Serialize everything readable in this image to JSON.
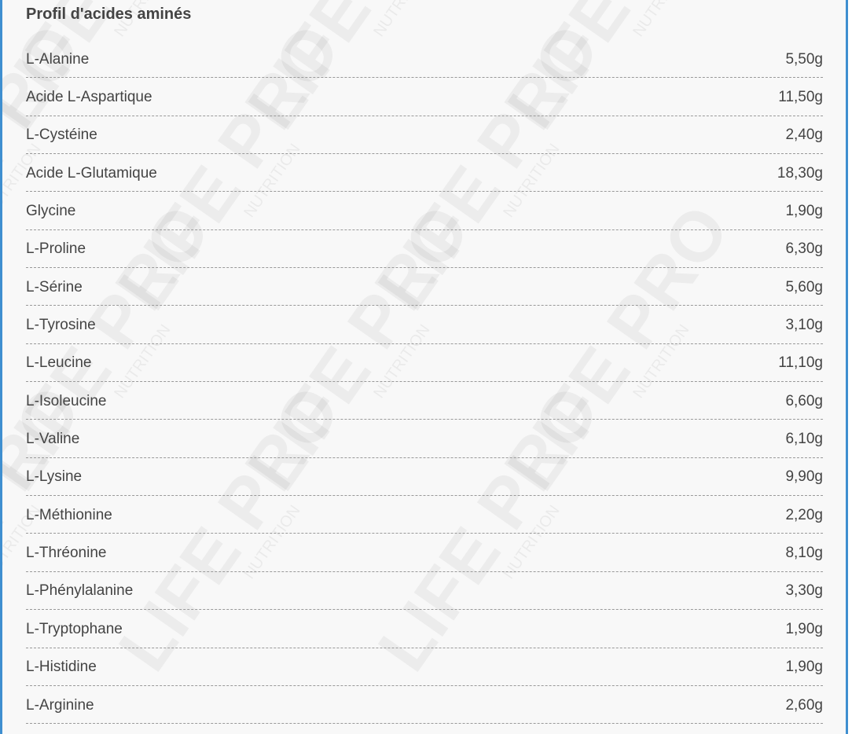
{
  "section": {
    "title": "Profil d'acides aminés",
    "rows": [
      {
        "name": "L-Alanine",
        "value": "5,50g"
      },
      {
        "name": "Acide L-Aspartique",
        "value": "11,50g"
      },
      {
        "name": "L-Cystéine",
        "value": "2,40g"
      },
      {
        "name": "Acide L-Glutamique",
        "value": "18,30g"
      },
      {
        "name": "Glycine",
        "value": "1,90g"
      },
      {
        "name": "L-Proline",
        "value": "6,30g"
      },
      {
        "name": "L-Sérine",
        "value": "5,60g"
      },
      {
        "name": "L-Tyrosine",
        "value": "3,10g"
      },
      {
        "name": "L-Leucine",
        "value": "11,10g"
      },
      {
        "name": "L-Isoleucine",
        "value": "6,60g"
      },
      {
        "name": "L-Valine",
        "value": "6,10g"
      },
      {
        "name": "L-Lysine",
        "value": "9,90g"
      },
      {
        "name": "L-Méthionine",
        "value": "2,20g"
      },
      {
        "name": "L-Thréonine",
        "value": "8,10g"
      },
      {
        "name": "L-Phénylalanine",
        "value": "3,30g"
      },
      {
        "name": "L-Tryptophane",
        "value": "1,90g"
      },
      {
        "name": "L-Histidine",
        "value": "1,90g"
      },
      {
        "name": "L-Arginine",
        "value": "2,60g"
      }
    ]
  },
  "watermark": {
    "brand": "LIFE PRO",
    "sub": "NUTRITION"
  },
  "colors": {
    "border": "#3f8fd0",
    "background": "#f8f8f8",
    "text": "#444444"
  }
}
